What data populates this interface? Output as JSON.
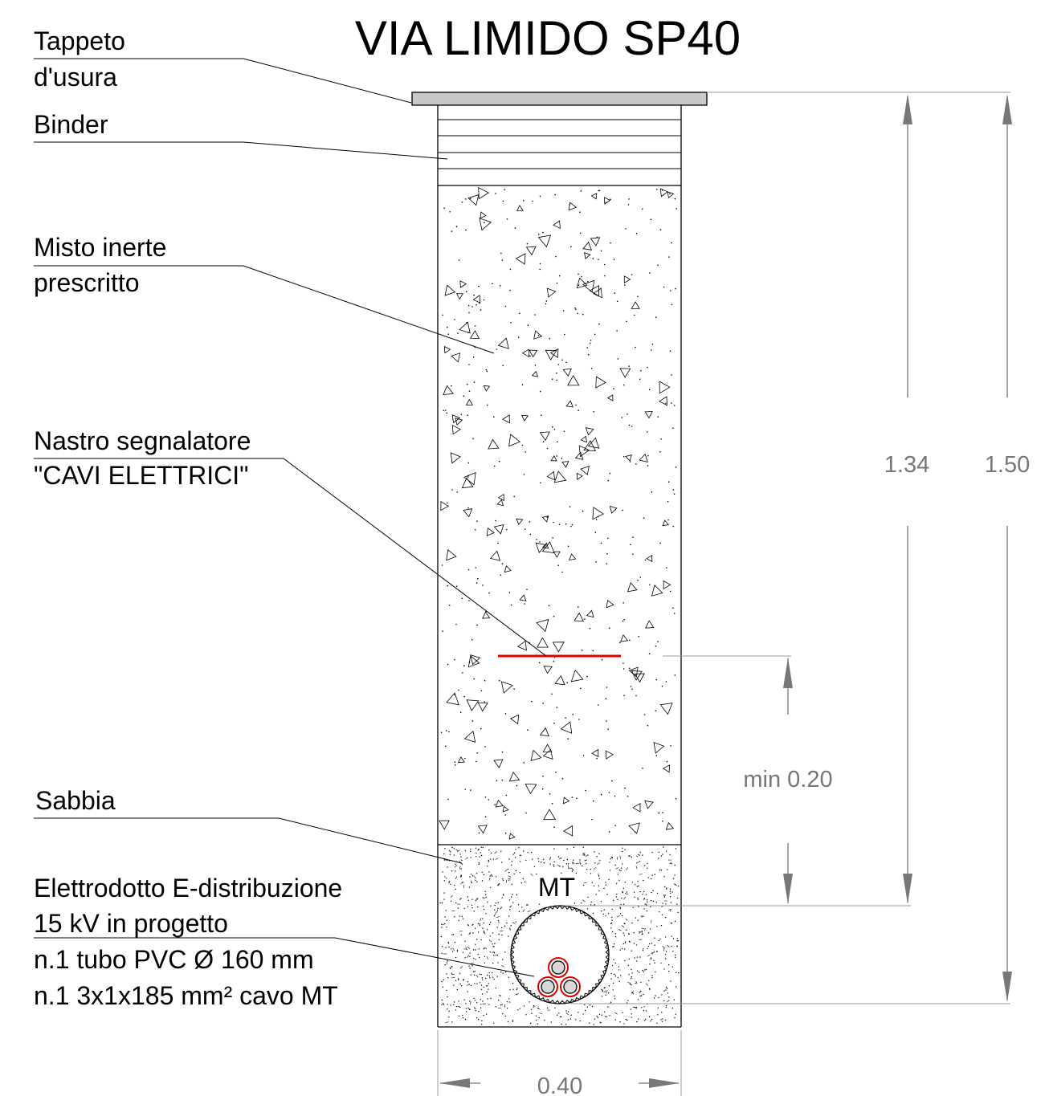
{
  "title": "VIA LIMIDO SP40",
  "labels": {
    "tappeto_line1": "Tappeto",
    "tappeto_line2": "d'usura",
    "binder": "Binder",
    "misto_line1": "Misto inerte",
    "misto_line2": "prescritto",
    "nastro_line1": "Nastro segnalatore",
    "nastro_line2": "\"CAVI ELETTRICI\"",
    "sabbia": "Sabbia",
    "elettrodotto_line1": "Elettrodotto E-distribuzione",
    "elettrodotto_line2": "15 kV in progetto",
    "tubo": "n.1 tubo PVC Ø 160 mm",
    "cavo": "n.1 3x1x185 mm² cavo MT",
    "mt": "MT"
  },
  "dimensions": {
    "depth_to_pipe": "1.34",
    "total_depth": "1.50",
    "tape_clearance": "min 0.20",
    "trench_width": "0.40"
  },
  "colors": {
    "line": "#000000",
    "dimension": "#777777",
    "tape": "#e00000",
    "asphalt": "#c8c8c8",
    "cable_ring": "#d80000"
  }
}
